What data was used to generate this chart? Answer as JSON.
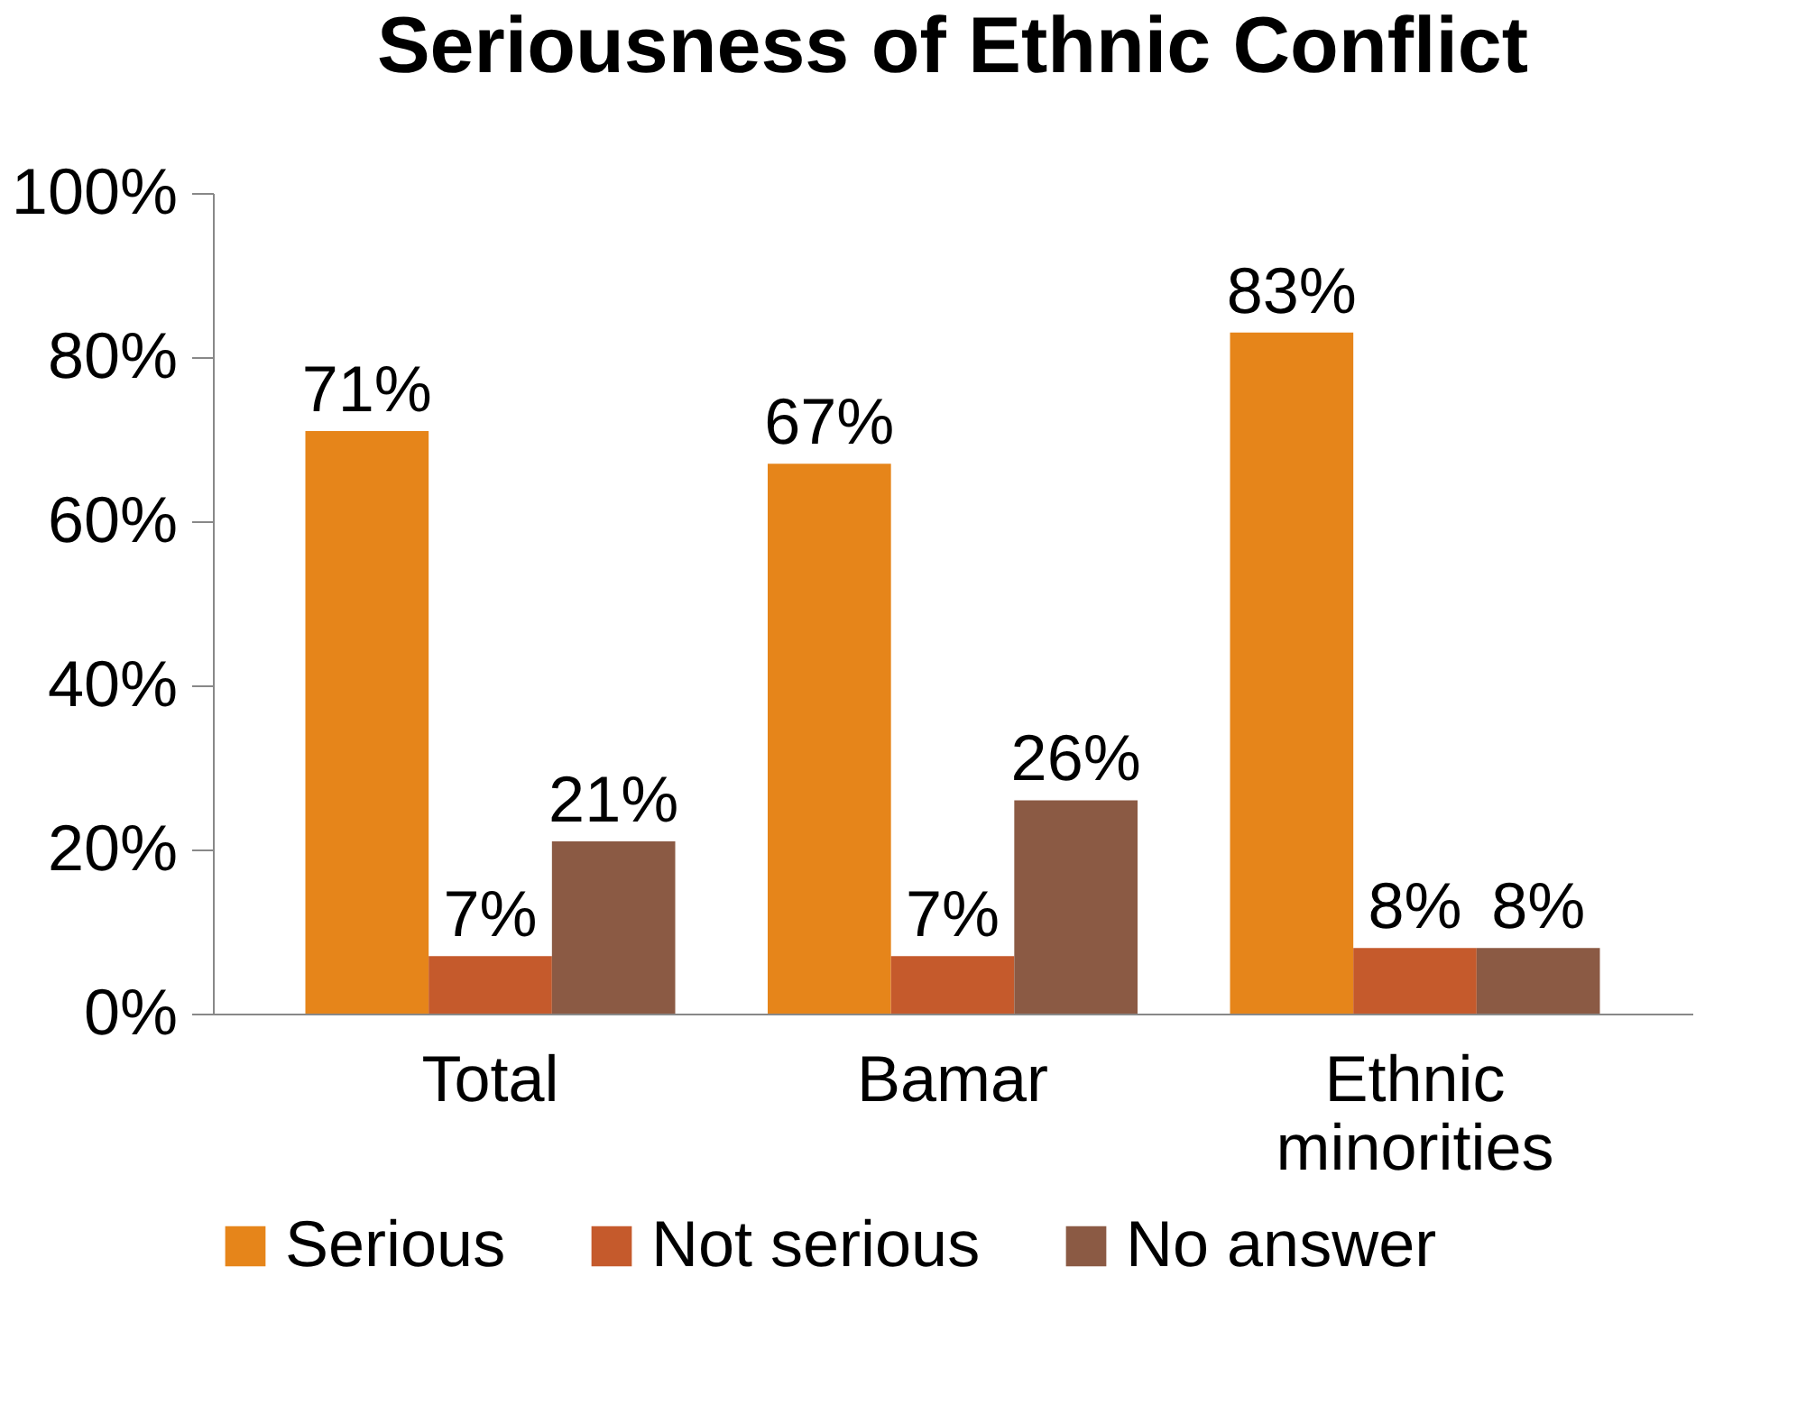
{
  "chart_data": {
    "type": "bar",
    "title": "Seriousness of Ethnic Conflict",
    "categories": [
      "Total",
      "Bamar",
      "Ethnic minorities"
    ],
    "series": [
      {
        "name": "Serious",
        "color": "#e6851a",
        "values": [
          71,
          67,
          83
        ],
        "value_labels": [
          "71%",
          "67%",
          "83%"
        ]
      },
      {
        "name": "Not serious",
        "color": "#c55a2c",
        "values": [
          7,
          7,
          8
        ],
        "value_labels": [
          "7%",
          "7%",
          "8%"
        ]
      },
      {
        "name": "No answer",
        "color": "#8b5a44",
        "values": [
          21,
          26,
          8
        ],
        "value_labels": [
          "21%",
          "26%",
          "8%"
        ]
      }
    ],
    "ylim": [
      0,
      100
    ],
    "yticks": [
      {
        "value": 0,
        "label": "0%"
      },
      {
        "value": 20,
        "label": "20%"
      },
      {
        "value": 40,
        "label": "40%"
      },
      {
        "value": 60,
        "label": "60%"
      },
      {
        "value": 80,
        "label": "80%"
      },
      {
        "value": 100,
        "label": "100%"
      }
    ],
    "grid": false,
    "legend": "bottom"
  }
}
